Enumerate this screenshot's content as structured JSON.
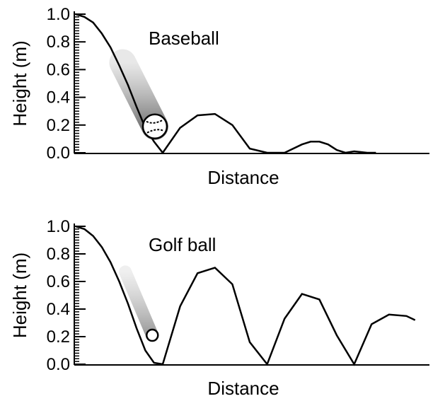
{
  "chart_data": [
    {
      "type": "line",
      "title": "Baseball",
      "xlabel": "Distance",
      "ylabel": "Height (m)",
      "ylim": [
        0,
        1.0
      ],
      "yticks": [
        "0.0",
        "0.2",
        "0.4",
        "0.6",
        "0.8",
        "1.0"
      ],
      "grid": false,
      "legend": "none",
      "series": [
        {
          "x": [
            0,
            0.1,
            0.2,
            0.3,
            0.4,
            0.5,
            0.6,
            0.7,
            0.8,
            0.9,
            1.0,
            1.2,
            1.4,
            1.6,
            1.8,
            2.0,
            2.2,
            2.4,
            2.6,
            2.7,
            2.8,
            2.9,
            3.0,
            3.1,
            3.2,
            3.35,
            3.45
          ],
          "y": [
            1.0,
            0.98,
            0.94,
            0.86,
            0.76,
            0.63,
            0.49,
            0.33,
            0.18,
            0.08,
            0.0,
            0.18,
            0.27,
            0.28,
            0.2,
            0.03,
            0.0,
            0.0,
            0.06,
            0.08,
            0.08,
            0.06,
            0.02,
            0.0,
            0.01,
            0.0,
            0.0
          ]
        }
      ],
      "ball": {
        "x": 0.91,
        "y": 0.19,
        "label": "baseball"
      },
      "color": "#000000"
    },
    {
      "type": "line",
      "title": "Golf ball",
      "xlabel": "Distance",
      "ylabel": "Height (m)",
      "ylim": [
        0,
        1.0
      ],
      "yticks": [
        "0.0",
        "0.2",
        "0.4",
        "0.6",
        "0.8",
        "1.0"
      ],
      "grid": false,
      "legend": "none",
      "series": [
        {
          "x": [
            0,
            0.1,
            0.2,
            0.3,
            0.4,
            0.5,
            0.6,
            0.7,
            0.8,
            0.9,
            1.0,
            1.2,
            1.4,
            1.6,
            1.8,
            2.0,
            2.2,
            2.4,
            2.6,
            2.8,
            3.0,
            3.2,
            3.4,
            3.6,
            3.8,
            3.9
          ],
          "y": [
            1.0,
            0.98,
            0.93,
            0.85,
            0.74,
            0.6,
            0.44,
            0.26,
            0.1,
            0.01,
            0.0,
            0.42,
            0.66,
            0.7,
            0.58,
            0.16,
            0.0,
            0.33,
            0.51,
            0.47,
            0.21,
            0.0,
            0.29,
            0.36,
            0.35,
            0.32
          ]
        }
      ],
      "ball": {
        "x": 0.88,
        "y": 0.21,
        "label": "golf ball"
      },
      "color": "#000000"
    }
  ]
}
